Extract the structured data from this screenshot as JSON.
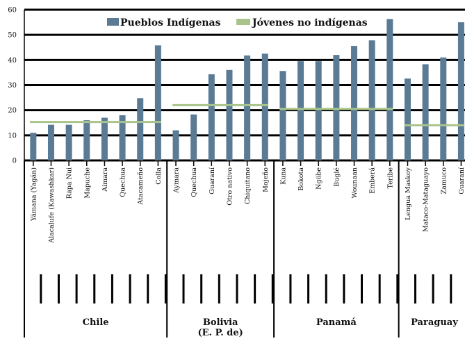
{
  "colors": {
    "bar": "#5b7b94",
    "reference_line": "#a9c48a",
    "grid": "#000000"
  },
  "chart_data": {
    "type": "bar",
    "title": "",
    "xlabel": "",
    "ylabel": "",
    "ylim": [
      0,
      60
    ],
    "yticks": [
      0,
      10,
      20,
      30,
      40,
      50,
      60
    ],
    "grid": true,
    "legend": [
      {
        "label": "Pueblos Indígenas",
        "kind": "bar"
      },
      {
        "label": "Jóvenes no indígenas",
        "kind": "line"
      }
    ],
    "legend_position": "top",
    "groups": [
      {
        "name": "Chile",
        "reference": 15.3,
        "categories": [
          "Yámana (Yagán)",
          "Alacalufe (Kawashkar)",
          "Rapa Nui",
          "Mapuche",
          "Aimara",
          "Quechua",
          "Atacameño",
          "Colla"
        ],
        "values": [
          11,
          14.2,
          14.2,
          16,
          17,
          18,
          24.8,
          45.8
        ]
      },
      {
        "name": "Bolivia (E. P. de)",
        "reference": 22,
        "categories": [
          "Aymara",
          "Quechua",
          "Guaraní",
          "Otro nativo",
          "Chiquitano",
          "Mojeño"
        ],
        "values": [
          12,
          18.3,
          34.3,
          36,
          41.8,
          42.5
        ]
      },
      {
        "name": "Panamá",
        "reference": 20.5,
        "categories": [
          "Kuna",
          "Bokota",
          "Ngöbe",
          "Buglé",
          "Wounaan",
          "Emberá",
          "Teribe"
        ],
        "values": [
          35.6,
          39.5,
          39.5,
          42,
          45.6,
          47.8,
          56.3
        ]
      },
      {
        "name": "Paraguay",
        "reference": 14,
        "categories": [
          "Lengua Maskoy",
          "Mataco-Mataguayo",
          "Zamuco",
          "Guaraní"
        ],
        "values": [
          32.6,
          38.3,
          41,
          55
        ]
      }
    ]
  }
}
